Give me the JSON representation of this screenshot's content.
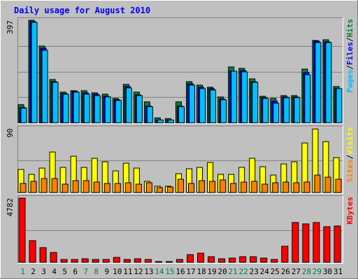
{
  "chart_data": [
    {
      "type": "bar",
      "title": "Daily usage for August 2010",
      "categories": [
        "1",
        "2",
        "3",
        "4",
        "5",
        "6",
        "7",
        "8",
        "9",
        "10",
        "11",
        "12",
        "13",
        "14",
        "15",
        "16",
        "17",
        "18",
        "19",
        "20",
        "21",
        "22",
        "23",
        "24",
        "25",
        "26",
        "27",
        "28",
        "29",
        "30",
        "31"
      ],
      "weekend_days": [
        "1",
        "7",
        "8",
        "14",
        "15",
        "21",
        "22",
        "28",
        "29"
      ],
      "y_max_label": "397",
      "ylim": [
        0,
        397
      ],
      "series": [
        {
          "name": "Hits",
          "color": "#008040",
          "values": [
            70,
            397,
            298,
            168,
            120,
            125,
            125,
            115,
            110,
            95,
            148,
            118,
            80,
            18,
            15,
            80,
            158,
            145,
            138,
            100,
            216,
            212,
            170,
            102,
            95,
            104,
            104,
            207,
            320,
            322,
            140
          ]
        },
        {
          "name": "Files",
          "color": "#0000ff",
          "values": [
            60,
            392,
            288,
            160,
            113,
            122,
            117,
            110,
            102,
            89,
            141,
            109,
            66,
            12,
            10,
            65,
            152,
            137,
            131,
            92,
            201,
            203,
            159,
            96,
            85,
            101,
            99,
            194,
            316,
            314,
            133
          ]
        },
        {
          "name": "Pages",
          "color": "#00c0ff",
          "values": [
            58,
            388,
            282,
            156,
            110,
            118,
            112,
            106,
            100,
            86,
            136,
            106,
            63,
            11,
            10,
            61,
            147,
            131,
            127,
            88,
            199,
            198,
            156,
            94,
            76,
            97,
            97,
            187,
            310,
            310,
            132
          ]
        }
      ],
      "axis_label_parts": [
        "Pages",
        "/",
        "Files",
        "/",
        "Hits"
      ]
    },
    {
      "type": "bar",
      "categories": [
        "1",
        "2",
        "3",
        "4",
        "5",
        "6",
        "7",
        "8",
        "9",
        "10",
        "11",
        "12",
        "13",
        "14",
        "15",
        "16",
        "17",
        "18",
        "19",
        "20",
        "21",
        "22",
        "23",
        "24",
        "25",
        "26",
        "27",
        "28",
        "29",
        "30",
        "31"
      ],
      "y_max_label": "90",
      "ylim": [
        0,
        90
      ],
      "series": [
        {
          "name": "Visits",
          "color": "#ffff00",
          "values": [
            32,
            25,
            34,
            57,
            35,
            51,
            35,
            48,
            43,
            30,
            41,
            34,
            16,
            9,
            9,
            26,
            33,
            35,
            42,
            25,
            25,
            35,
            48,
            36,
            24,
            40,
            43,
            69,
            89,
            71,
            49
          ]
        },
        {
          "name": "Sites",
          "color": "#ff8000",
          "values": [
            13,
            16,
            20,
            20,
            12,
            17,
            17,
            15,
            13,
            13,
            14,
            12,
            14,
            7,
            8,
            19,
            13,
            17,
            16,
            18,
            13,
            15,
            16,
            12,
            14,
            15,
            14,
            15,
            24,
            22,
            19
          ]
        }
      ],
      "axis_label_parts": [
        "Sites",
        "/",
        "Visits"
      ]
    },
    {
      "type": "bar",
      "categories": [
        "1",
        "2",
        "3",
        "4",
        "5",
        "6",
        "7",
        "8",
        "9",
        "10",
        "11",
        "12",
        "13",
        "14",
        "15",
        "16",
        "17",
        "18",
        "19",
        "20",
        "21",
        "22",
        "23",
        "24",
        "25",
        "26",
        "27",
        "28",
        "29",
        "30",
        "31"
      ],
      "y_max_label": "4782",
      "ylim": [
        0,
        4782
      ],
      "series": [
        {
          "name": "KBytes",
          "color": "#ff0000",
          "values": [
            4782,
            1632,
            1079,
            702,
            232,
            232,
            270,
            232,
            232,
            380,
            232,
            270,
            232,
            38,
            38,
            232,
            557,
            654,
            422,
            270,
            320,
            422,
            422,
            320,
            185,
            1220,
            2960,
            2840,
            2960,
            2670,
            2710
          ]
        }
      ],
      "axis_label_parts": [
        "KBytes"
      ]
    }
  ]
}
